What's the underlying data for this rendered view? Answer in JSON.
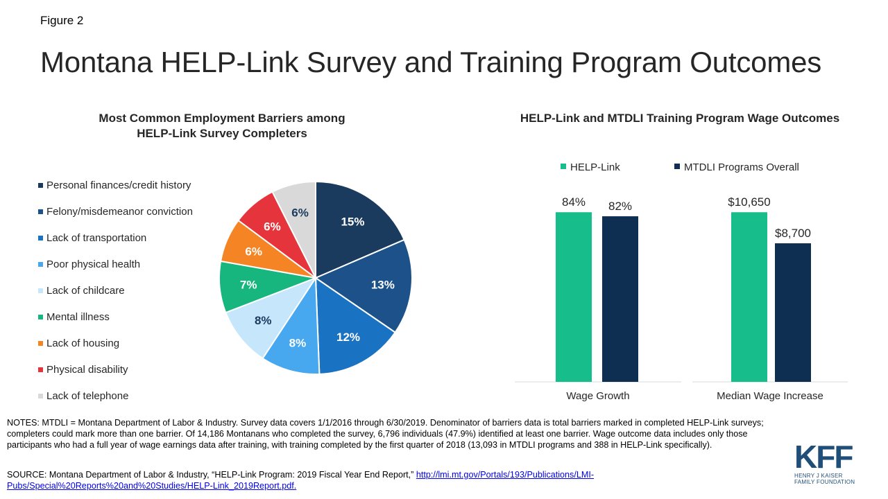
{
  "figure_label": "Figure 2",
  "title": "Montana HELP-Link Survey and Training Program Outcomes",
  "chart_data": [
    {
      "type": "pie",
      "title": "Most Common Employment Barriers among HELP-Link Survey Completers",
      "title_lines": [
        "Most Common Employment Barriers among",
        "HELP-Link Survey Completers"
      ],
      "legend_position": "left",
      "slices": [
        {
          "label": "Personal finances/credit history",
          "value": 15,
          "display": "15%",
          "color": "#1a3a5e",
          "text_color": "#ffffff"
        },
        {
          "label": "Felony/misdemeanor conviction",
          "value": 13,
          "display": "13%",
          "color": "#1c5289",
          "text_color": "#ffffff"
        },
        {
          "label": "Lack of transportation",
          "value": 12,
          "display": "12%",
          "color": "#1a72c3",
          "text_color": "#ffffff"
        },
        {
          "label": "Poor physical health",
          "value": 8,
          "display": "8%",
          "color": "#47a7ef",
          "text_color": "#ffffff"
        },
        {
          "label": "Lack of childcare",
          "value": 8,
          "display": "8%",
          "color": "#c6e6fb",
          "text_color": "#1a3a5e"
        },
        {
          "label": "Mental illness",
          "value": 7,
          "display": "7%",
          "color": "#17b67e",
          "text_color": "#ffffff"
        },
        {
          "label": "Lack of housing",
          "value": 6,
          "display": "6%",
          "color": "#f48424",
          "text_color": "#ffffff"
        },
        {
          "label": "Physical disability",
          "value": 6,
          "display": "6%",
          "color": "#e6343c",
          "text_color": "#ffffff"
        },
        {
          "label": "Lack of telephone",
          "value": 6,
          "display": "6%",
          "color": "#d9d9d9",
          "text_color": "#1a3a5e"
        }
      ]
    },
    {
      "type": "bar",
      "title": "HELP-Link and MTDLI Training Program Wage Outcomes",
      "legend_position": "top",
      "series": [
        {
          "name": "HELP-Link",
          "color": "#17bd8a"
        },
        {
          "name": "MTDLI Programs Overall",
          "color": "#0f2f52"
        }
      ],
      "panels": [
        {
          "category": "Wage Growth",
          "values": [
            84,
            82
          ],
          "labels": [
            "84%",
            "82%"
          ],
          "unit": "%"
        },
        {
          "category": "Median Wage Increase",
          "values": [
            10650,
            8700
          ],
          "labels": [
            "$10,650",
            "$8,700"
          ],
          "unit": "$"
        }
      ]
    }
  ],
  "notes": "NOTES: MTDLI = Montana Department of Labor & Industry.  Survey data covers 1/1/2016 through 6/30/2019.  Denominator of barriers data is total barriers marked in completed HELP-Link surveys; completers could mark more than one barrier.  Of 14,186 Montanans who completed the survey, 6,796 individuals (47.9%) identified at least one barrier.  Wage outcome data includes only those participants who had a full year of wage earnings data after training, with training completed by the first quarter of 2018 (13,093 in MTDLI programs and 388 in HELP-Link specifically).",
  "source_prefix": "SOURCE: Montana Department of Labor & Industry, “HELP-Link Program: 2019 Fiscal Year End Report,” ",
  "source_link": "http://lmi.mt.gov/Portals/193/Publications/LMI-Pubs/Special%20Reports%20and%20Studies/HELP-Link_2019Report.pdf.",
  "logo": {
    "mark": "KFF",
    "line1": "HENRY J KAISER",
    "line2": "FAMILY FOUNDATION"
  }
}
